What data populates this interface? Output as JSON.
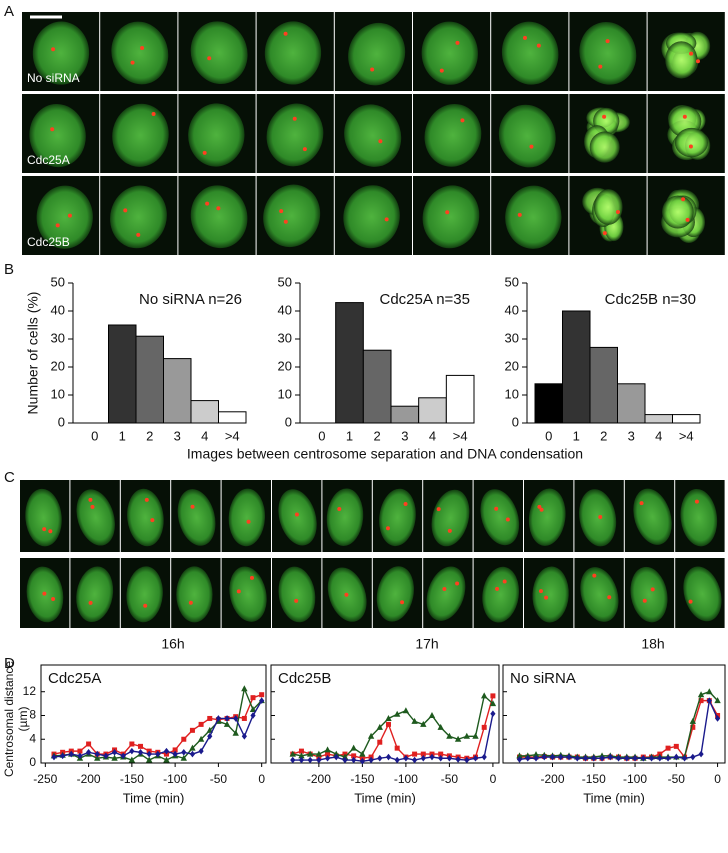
{
  "panel_labels": [
    "A",
    "B",
    "C",
    "D"
  ],
  "panel_a": {
    "row_labels": [
      "No siRNA",
      "Cdc25A",
      "Cdc25B"
    ]
  },
  "panel_b_xlabel": "Images between centrosome separation and DNA condensation",
  "panel_c": {
    "time_labels": [
      "16h",
      "17h",
      "18h"
    ]
  },
  "chart_data": [
    {
      "type": "bar",
      "title": "No siRNA n=26",
      "y_label": "Number of cells (%)",
      "categories": [
        "0",
        "1",
        "2",
        "3",
        "4",
        ">4"
      ],
      "values": [
        0,
        35,
        31,
        23,
        8,
        4
      ],
      "colors": [
        "#000000",
        "#333333",
        "#666666",
        "#999999",
        "#cccccc",
        "#ffffff"
      ],
      "ylim": [
        0,
        50
      ],
      "yticks": [
        0,
        10,
        20,
        30,
        40,
        50
      ]
    },
    {
      "type": "bar",
      "title": "Cdc25A n=35",
      "categories": [
        "0",
        "1",
        "2",
        "3",
        "4",
        ">4"
      ],
      "values": [
        0,
        43,
        26,
        6,
        9,
        17
      ],
      "colors": [
        "#000000",
        "#333333",
        "#666666",
        "#999999",
        "#cccccc",
        "#ffffff"
      ],
      "ylim": [
        0,
        50
      ],
      "yticks": [
        0,
        10,
        20,
        30,
        40,
        50
      ]
    },
    {
      "type": "bar",
      "title": "Cdc25B n=30",
      "categories": [
        "0",
        "1",
        "2",
        "3",
        "4",
        ">4"
      ],
      "values": [
        14,
        40,
        27,
        14,
        3,
        3
      ],
      "colors": [
        "#000000",
        "#333333",
        "#666666",
        "#999999",
        "#cccccc",
        "#ffffff"
      ],
      "ylim": [
        0,
        50
      ],
      "yticks": [
        0,
        10,
        20,
        30,
        40,
        50
      ]
    },
    {
      "type": "line",
      "title": "Cdc25A",
      "y_label": [
        "Centrosomal distance",
        "(µm)"
      ],
      "x_label": "Time (min)",
      "x": [
        -240,
        -230,
        -220,
        -210,
        -200,
        -190,
        -180,
        -170,
        -160,
        -150,
        -140,
        -130,
        -120,
        -110,
        -100,
        -90,
        -80,
        -70,
        -60,
        -50,
        -40,
        -30,
        -20,
        -10,
        0
      ],
      "series": [
        {
          "color": "#e02020",
          "marker": "square",
          "values": [
            1.5,
            1.8,
            2,
            2,
            3.2,
            1.5,
            1.5,
            2.2,
            1.5,
            3.2,
            2.8,
            2,
            1.8,
            1.5,
            2.2,
            4,
            5.5,
            6.5,
            7.5,
            7.3,
            7.5,
            7.8,
            7.5,
            11,
            11.5
          ]
        },
        {
          "color": "#1e5a1e",
          "marker": "triangle",
          "values": [
            1.2,
            1.3,
            1.5,
            0.8,
            1.5,
            0.8,
            1,
            0.8,
            1,
            0.5,
            1.5,
            0.5,
            1.2,
            0.5,
            1.2,
            0.8,
            2.5,
            4,
            5.5,
            7,
            6.5,
            5,
            12.5,
            9,
            10.5
          ]
        },
        {
          "color": "#1a1a8c",
          "marker": "diamond",
          "values": [
            1,
            1.2,
            1.5,
            1.2,
            1.8,
            1.5,
            1.2,
            1.8,
            1.2,
            2,
            1.8,
            1.5,
            1.5,
            2,
            1.5,
            1.8,
            1.5,
            2,
            4.5,
            7.5,
            7.5,
            7.5,
            4.5,
            8,
            10.5
          ]
        }
      ],
      "xlim": [
        -255,
        5
      ],
      "xticks": [
        -250,
        -200,
        -150,
        -100,
        -50,
        0
      ],
      "ylim": [
        0,
        16.5
      ],
      "yticks": [
        0,
        4,
        8,
        12
      ]
    },
    {
      "type": "line",
      "title": "Cdc25B",
      "x_label": "Time (min)",
      "x": [
        -230,
        -220,
        -210,
        -200,
        -190,
        -180,
        -170,
        -160,
        -150,
        -140,
        -130,
        -120,
        -110,
        -100,
        -90,
        -80,
        -70,
        -60,
        -50,
        -40,
        -30,
        -20,
        -10,
        0
      ],
      "series": [
        {
          "color": "#e02020",
          "marker": "square",
          "values": [
            1.5,
            2,
            1.5,
            1,
            1.5,
            1.2,
            1.5,
            1.2,
            0.8,
            1,
            3.5,
            6.5,
            2.5,
            1,
            1.5,
            1.5,
            1.5,
            1.5,
            1.2,
            1,
            0.8,
            1,
            6,
            11.3
          ]
        },
        {
          "color": "#1e5a1e",
          "marker": "triangle",
          "values": [
            1.5,
            1.2,
            1.5,
            1.5,
            2.2,
            1.5,
            1,
            2.5,
            1.5,
            4.5,
            6,
            7.5,
            8.2,
            8.8,
            7,
            6.5,
            8,
            6,
            4.5,
            4,
            4.5,
            4.5,
            11.3,
            10
          ]
        },
        {
          "color": "#1a1a8c",
          "marker": "diamond",
          "values": [
            0.5,
            0.5,
            0.5,
            0.5,
            0.8,
            1,
            0.5,
            0.5,
            0.3,
            0.5,
            0.8,
            1,
            0.5,
            0.8,
            0.5,
            0.8,
            1,
            0.8,
            0.8,
            0.6,
            0.5,
            0.8,
            1,
            8.3
          ]
        }
      ],
      "xlim": [
        -255,
        7
      ],
      "xticks": [
        -200,
        -150,
        -100,
        -50,
        0
      ],
      "ylim": [
        0,
        16.5
      ],
      "yticks": [
        0,
        4,
        8,
        12
      ]
    },
    {
      "type": "line",
      "title": "No siRNA",
      "x_label": "Time (min)",
      "x": [
        -240,
        -230,
        -220,
        -210,
        -200,
        -190,
        -180,
        -170,
        -160,
        -150,
        -140,
        -130,
        -120,
        -110,
        -100,
        -90,
        -80,
        -70,
        -60,
        -50,
        -40,
        -30,
        -20,
        -10,
        0
      ],
      "series": [
        {
          "color": "#e02020",
          "marker": "square",
          "values": [
            1,
            1,
            1,
            1.1,
            1,
            1,
            1,
            1,
            0.8,
            0.8,
            0.8,
            1,
            1,
            0.8,
            0.8,
            1,
            1,
            1.5,
            2.5,
            2.8,
            1,
            6,
            10.5,
            10.5,
            8
          ]
        },
        {
          "color": "#1e5a1e",
          "marker": "triangle",
          "values": [
            1.2,
            1.2,
            1.4,
            1.3,
            1.2,
            1.3,
            1.2,
            1,
            1,
            1,
            1.2,
            1.2,
            1,
            1,
            1,
            0.8,
            1,
            1,
            1,
            1,
            1,
            7,
            11.5,
            12,
            10.5
          ]
        },
        {
          "color": "#1a1a8c",
          "marker": "diamond",
          "values": [
            0.6,
            0.8,
            0.8,
            1,
            1,
            1,
            1,
            0.8,
            0.8,
            0.8,
            0.8,
            1,
            0.8,
            0.8,
            0.8,
            0.8,
            0.8,
            0.8,
            0.8,
            1,
            0.8,
            1,
            1.5,
            10.5,
            7.5
          ]
        }
      ],
      "xlim": [
        -260,
        9
      ],
      "xticks": [
        -200,
        -150,
        -100,
        -50,
        0
      ],
      "ylim": [
        0,
        16.5
      ],
      "yticks": [
        0,
        4,
        8,
        12
      ]
    }
  ]
}
